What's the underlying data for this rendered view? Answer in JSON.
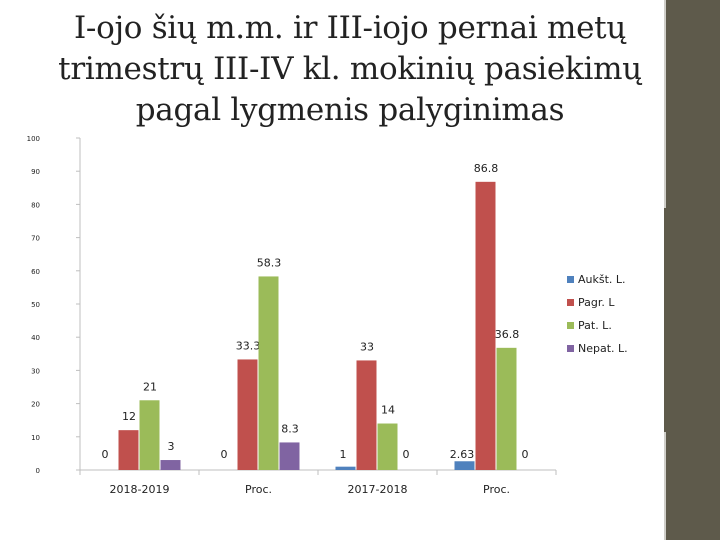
{
  "slide": {
    "title_lines": [
      "I-ojo šių m.m.  ir III-iojo pernai metų",
      "trimestrų III-IV kl. mokinių pasiekimų",
      "pagal lygmenis palyginimas"
    ]
  },
  "chart_data": {
    "type": "bar",
    "title": "I-ojo šių m.m.  ir III-iojo pernai metų trimestrų III-IV kl. mokinių pasiekimų pagal lygmenis palyginimas",
    "categories": [
      "2018-2019",
      "Proc.",
      "2017-2018",
      "Proc."
    ],
    "series": [
      {
        "name": "Aukšt. L.",
        "color": "#4f81bd",
        "values": [
          0,
          0,
          1,
          2.63
        ],
        "labels": [
          "0",
          "0",
          "1",
          "2.63"
        ]
      },
      {
        "name": "Pagr. L",
        "color": "#c0504d",
        "values": [
          12,
          33.3,
          33,
          86.8
        ],
        "labels": [
          "12",
          "33.3",
          "33",
          "86.8"
        ]
      },
      {
        "name": "Pat. L.",
        "color": "#9bbb59",
        "values": [
          21,
          58.3,
          14,
          36.8
        ],
        "labels": [
          "21",
          "58.3",
          "14",
          "36.8"
        ]
      },
      {
        "name": "Nepat. L.",
        "color": "#8064a2",
        "values": [
          3,
          8.3,
          0,
          0
        ],
        "labels": [
          "3",
          "8.3",
          "0",
          "0"
        ]
      }
    ],
    "ylim": [
      0,
      100
    ],
    "yticks": [
      "0",
      "10",
      "20",
      "30",
      "40",
      "50",
      "60",
      "70",
      "80",
      "90",
      "100"
    ],
    "xlabel": "",
    "ylabel": "",
    "grid": false,
    "legend_position": "right"
  }
}
